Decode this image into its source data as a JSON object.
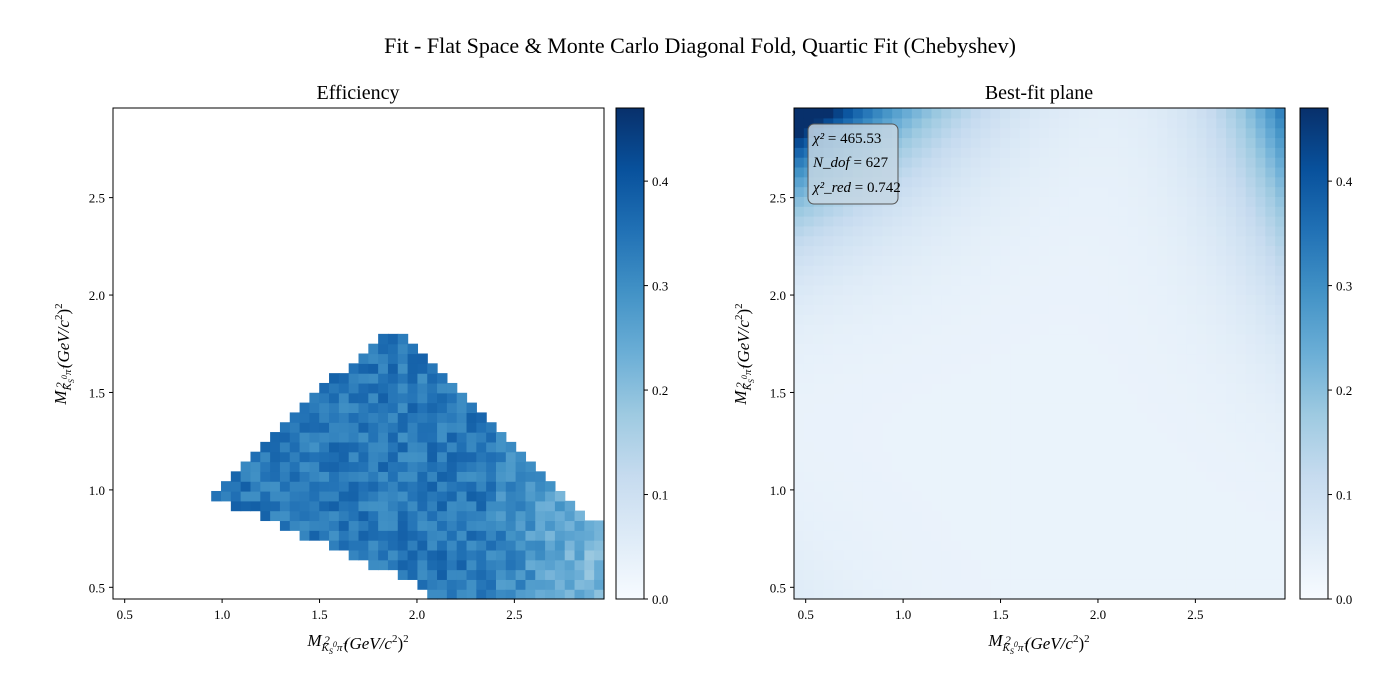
{
  "suptitle": "Fit - Flat Space & Monte Carlo Diagonal Fold, Quartic Fit (Chebyshev)",
  "colormap": {
    "name": "Blues",
    "low": "#f7fbff",
    "mid": "#6baed6",
    "high": "#08306b"
  },
  "chart_data": [
    {
      "type": "heatmap",
      "title": "Efficiency",
      "xlabel": "M²_{K_S⁰π⁺} (GeV/c²)²",
      "ylabel": "M²_{K_S⁰π⁻} (GeV/c²)²",
      "xlim": [
        0.44,
        2.96
      ],
      "ylim": [
        0.44,
        2.96
      ],
      "xticks": [
        "0.5",
        "1.0",
        "1.5",
        "2.0",
        "2.5"
      ],
      "yticks": [
        "0.5",
        "1.0",
        "1.5",
        "2.0",
        "2.5"
      ],
      "bins": 50,
      "clim": [
        0.0,
        0.47
      ],
      "colorbar_ticks": [
        "0.0",
        "0.1",
        "0.2",
        "0.3",
        "0.4"
      ],
      "colorbar_tick_values": [
        0.0,
        0.1,
        0.2,
        0.3,
        0.4
      ],
      "filled_region": "Populated region bounded by the diagonal M²_{K_S⁰π⁻} ≈ M²_{K_S⁰π⁺} - 0.1 (upper edge reaching 1.85 at x ≈ 1.85) and the Dalitz boundary; empty elsewhere",
      "typical_efficiency": 0.34,
      "efficiency_at_high_x_low_y": 0.24
    },
    {
      "type": "heatmap",
      "title": "Best-fit plane",
      "xlabel": "M²_{K_S⁰π⁺} (GeV/c²)²",
      "ylabel": "M²_{K_S⁰π⁻} (GeV/c²)²",
      "xlim": [
        0.44,
        2.96
      ],
      "ylim": [
        0.44,
        2.96
      ],
      "xticks": [
        "0.5",
        "1.0",
        "1.5",
        "2.0",
        "2.5"
      ],
      "yticks": [
        "0.5",
        "1.0",
        "1.5",
        "2.0",
        "2.5"
      ],
      "bins": 50,
      "clim": [
        0.0,
        0.47
      ],
      "colorbar_ticks": [
        "0.0",
        "0.1",
        "0.2",
        "0.3",
        "0.4"
      ],
      "colorbar_tick_values": [
        0.0,
        0.1,
        0.2,
        0.3,
        0.4
      ],
      "corner_values": {
        "top_left": 0.45,
        "top_right": 0.27,
        "bottom_left": 0.05,
        "bottom_right": 0.02
      },
      "stats_box": {
        "chi2_label": "χ²",
        "chi2_value": "465.53",
        "ndof_label": "N_dof",
        "ndof_value": "627",
        "chi2red_label": "χ²_red",
        "chi2red_value": "0.742"
      }
    }
  ]
}
